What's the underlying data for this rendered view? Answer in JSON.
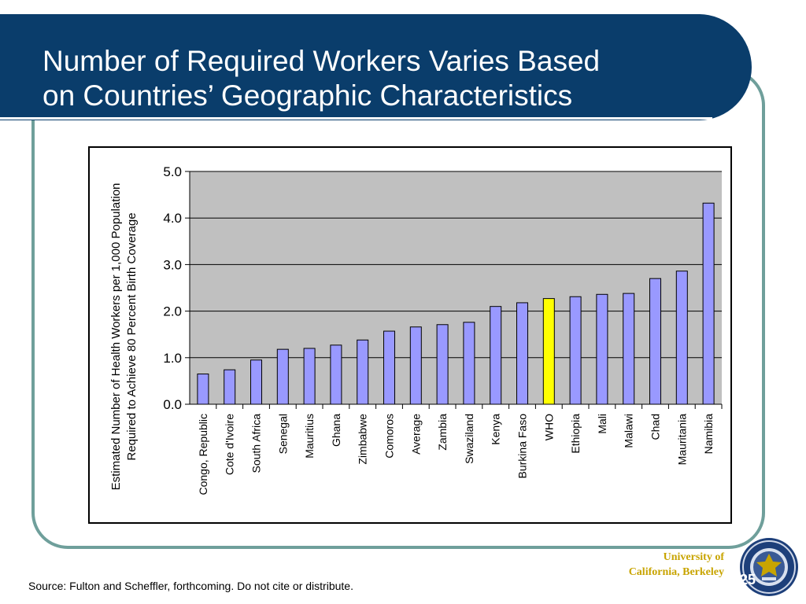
{
  "slide": {
    "title": "Number of Required Workers Varies Based\non Countries’ Geographic Characteristics",
    "source": "Source: Fulton and Scheffler, forthcoming. Do not cite or distribute.",
    "university": "University of\nCalifornia, Berkeley",
    "slide_number": "25",
    "colors": {
      "title_bar": "#0a3d6b",
      "frame": "#6f9f9b",
      "university_text": "#c8a400"
    }
  },
  "chart_data": {
    "type": "bar",
    "ylabel": "Estimated Number of Health Workers per 1,000 Population\nRequired to Achieve 80 Percent Birth Coverage",
    "xlabel": "",
    "ylim": [
      0,
      5
    ],
    "yticks": [
      "0.0",
      "1.0",
      "2.0",
      "3.0",
      "4.0",
      "5.0"
    ],
    "grid": true,
    "categories": [
      "Congo, Republic",
      "Cote d'Ivoire",
      "South Africa",
      "Senegal",
      "Mauritius",
      "Ghana",
      "Zimbabwe",
      "Comoros",
      "Average",
      "Zambia",
      "Swaziland",
      "Kenya",
      "Burkina Faso",
      "WHO",
      "Ethiopia",
      "Mali",
      "Malawi",
      "Chad",
      "Mauritania",
      "Namibia"
    ],
    "values": [
      0.65,
      0.74,
      0.95,
      1.18,
      1.2,
      1.27,
      1.38,
      1.57,
      1.66,
      1.71,
      1.76,
      2.1,
      2.18,
      2.27,
      2.31,
      2.36,
      2.38,
      2.7,
      2.86,
      4.32
    ],
    "highlight": "WHO",
    "colors": {
      "bar": "#9999ff",
      "highlight_bar": "#ffff00",
      "plot_bg": "#c0c0c0"
    }
  }
}
